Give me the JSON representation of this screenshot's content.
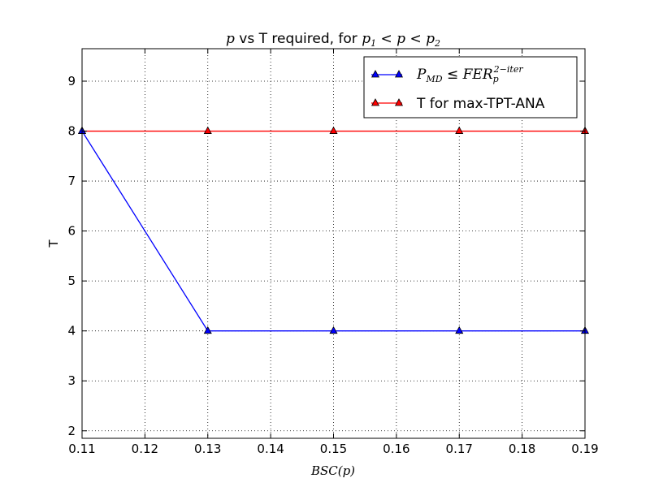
{
  "chart_data": {
    "type": "line",
    "title": {
      "prefix": "p",
      "middle": " vs T required, for ",
      "p1": "p",
      "p1_sub": "1",
      "lt1": " < ",
      "p_mid": "p",
      "lt2": " < ",
      "p2": "p",
      "p2_sub": "2"
    },
    "xlabel": "BSC(p)",
    "ylabel": "T",
    "xlim": [
      0.11,
      0.19
    ],
    "ylim": [
      1.85,
      9.65
    ],
    "xticks": [
      "0.11",
      "0.12",
      "0.13",
      "0.14",
      "0.15",
      "0.16",
      "0.17",
      "0.18",
      "0.19"
    ],
    "yticks": [
      "2",
      "3",
      "4",
      "5",
      "6",
      "7",
      "8",
      "9"
    ],
    "grid": true,
    "legend_position": "top-right",
    "x": [
      0.11,
      0.13,
      0.15,
      0.17,
      0.19
    ],
    "series": [
      {
        "name": "P_MD ≤ FER_p^(2-iter)",
        "color": "#0000ff",
        "marker": "triangle-up",
        "values": [
          8,
          4,
          4,
          4,
          4
        ]
      },
      {
        "name": "T for max-TPT-ANA",
        "color": "#ff0000",
        "marker": "triangle-up",
        "values": [
          8,
          8,
          8,
          8,
          8
        ]
      }
    ],
    "legend": {
      "entry1": {
        "P": "P",
        "P_sub": "MD",
        "leq": " ≤ ",
        "FER": "FER",
        "FER_sub": "p",
        "FER_sup": "2−iter"
      },
      "entry2": "T for max-TPT-ANA"
    }
  }
}
